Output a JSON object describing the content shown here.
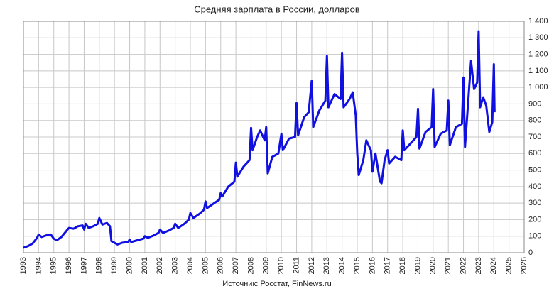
{
  "chart_data": {
    "type": "line",
    "title": "Средняя зарплата в России, долларов",
    "source": "Источник: Росстат, FinNews.ru",
    "xlim": [
      1993,
      2026
    ],
    "xticks": [
      1993,
      1994,
      1995,
      1996,
      1997,
      1998,
      1999,
      2000,
      2001,
      2002,
      2003,
      2004,
      2005,
      2006,
      2007,
      2008,
      2009,
      2010,
      2011,
      2012,
      2013,
      2014,
      2015,
      2016,
      2017,
      2018,
      2019,
      2020,
      2021,
      2022,
      2023,
      2024,
      2025,
      2026
    ],
    "ylim": [
      0,
      1400
    ],
    "yticks": [
      0,
      100,
      200,
      300,
      400,
      500,
      600,
      700,
      800,
      900,
      {
        "value": 1000,
        "label": "1 000"
      },
      {
        "value": 1100,
        "label": "1 100"
      },
      {
        "value": 1200,
        "label": "1 200"
      },
      {
        "value": 1300,
        "label": "1 300"
      },
      {
        "value": 1400,
        "label": "1 400"
      }
    ],
    "grid": true,
    "series": [
      {
        "color": "#1010e0",
        "x": [
          1993.0,
          1993.3,
          1993.6,
          1993.9,
          1994.0,
          1994.2,
          1994.5,
          1994.8,
          1995.0,
          1995.2,
          1995.5,
          1995.9,
          1996.0,
          1996.3,
          1996.6,
          1996.9,
          1997.0,
          1997.1,
          1997.3,
          1997.6,
          1997.9,
          1998.0,
          1998.2,
          1998.5,
          1998.7,
          1998.8,
          1999.0,
          1999.2,
          1999.5,
          1999.9,
          2000.0,
          2000.1,
          2000.5,
          2000.9,
          2001.0,
          2001.2,
          2001.6,
          2001.9,
          2002.0,
          2002.2,
          2002.6,
          2002.9,
          2003.0,
          2003.2,
          2003.6,
          2003.9,
          2004.0,
          2004.2,
          2004.6,
          2004.9,
          2005.0,
          2005.1,
          2005.5,
          2005.9,
          2006.0,
          2006.1,
          2006.5,
          2006.9,
          2007.0,
          2007.1,
          2007.5,
          2007.9,
          2008.0,
          2008.1,
          2008.4,
          2008.6,
          2008.9,
          2009.0,
          2009.1,
          2009.4,
          2009.8,
          2010.0,
          2010.1,
          2010.5,
          2010.9,
          2011.0,
          2011.1,
          2011.5,
          2011.8,
          2012.0,
          2012.1,
          2012.5,
          2012.9,
          2013.0,
          2013.1,
          2013.5,
          2013.9,
          2014.0,
          2014.1,
          2014.5,
          2014.7,
          2014.9,
          2015.0,
          2015.1,
          2015.4,
          2015.6,
          2015.9,
          2016.0,
          2016.2,
          2016.5,
          2016.6,
          2016.8,
          2017.0,
          2017.1,
          2017.5,
          2017.9,
          2018.0,
          2018.1,
          2018.5,
          2018.9,
          2019.0,
          2019.1,
          2019.5,
          2019.9,
          2020.0,
          2020.1,
          2020.5,
          2020.9,
          2021.0,
          2021.1,
          2021.5,
          2021.9,
          2022.0,
          2022.1,
          2022.5,
          2022.7,
          2022.9,
          2023.0,
          2023.1,
          2023.3,
          2023.5,
          2023.7,
          2023.9,
          2024.0,
          2024.05
        ],
        "values": [
          30,
          40,
          55,
          90,
          110,
          95,
          105,
          110,
          85,
          75,
          95,
          140,
          150,
          145,
          160,
          165,
          140,
          175,
          150,
          160,
          175,
          210,
          170,
          180,
          160,
          70,
          60,
          50,
          60,
          65,
          80,
          65,
          75,
          85,
          100,
          90,
          105,
          120,
          140,
          120,
          135,
          150,
          175,
          150,
          175,
          200,
          240,
          210,
          235,
          260,
          310,
          270,
          295,
          320,
          360,
          340,
          400,
          430,
          545,
          460,
          520,
          560,
          755,
          620,
          700,
          740,
          680,
          760,
          480,
          580,
          600,
          720,
          620,
          690,
          700,
          905,
          710,
          820,
          850,
          1040,
          760,
          860,
          920,
          1190,
          880,
          960,
          930,
          1210,
          880,
          930,
          970,
          830,
          600,
          470,
          560,
          680,
          620,
          490,
          600,
          430,
          420,
          560,
          620,
          540,
          580,
          560,
          740,
          620,
          660,
          700,
          870,
          630,
          730,
          760,
          990,
          640,
          720,
          740,
          920,
          650,
          760,
          780,
          1060,
          640,
          1160,
          990,
          1030,
          1340,
          880,
          940,
          890,
          730,
          790,
          1140,
          850
        ]
      }
    ]
  }
}
